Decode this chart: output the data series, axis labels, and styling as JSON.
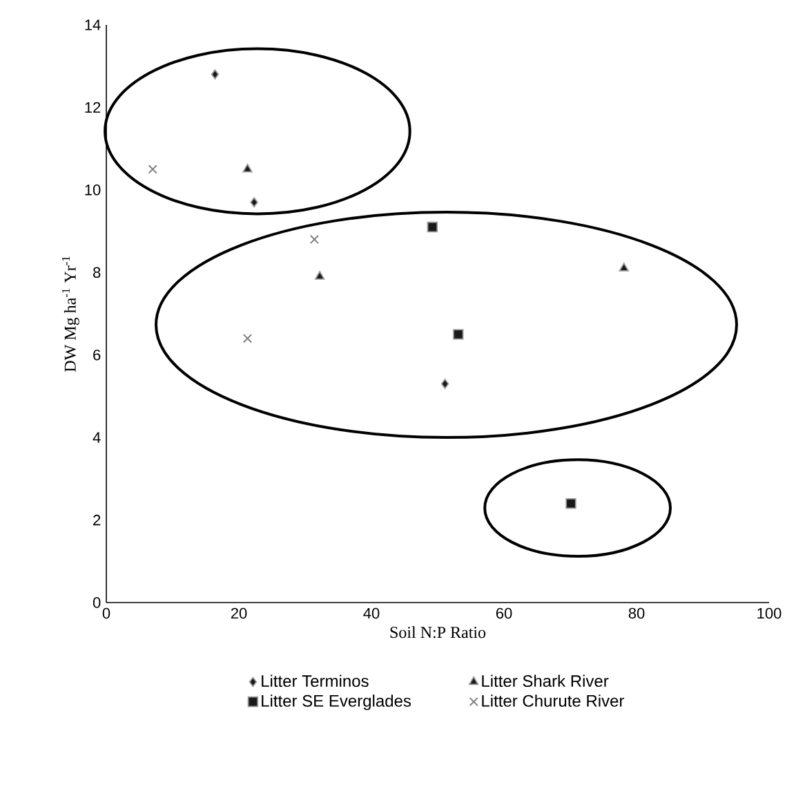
{
  "chart_data": {
    "type": "scatter",
    "xlabel": "Soil N:P Ratio",
    "ylabel": "DW Mg ha$^{-1}$ Yr$^{-1}$",
    "xlim": [
      0,
      100
    ],
    "xticks": [
      0,
      20,
      40,
      60,
      80,
      100
    ],
    "ylim": [
      0,
      14
    ],
    "yticks": [
      0,
      2,
      4,
      6,
      8,
      10,
      12,
      14
    ],
    "legend": "bottom",
    "series": [
      {
        "name": "Litter Terminos",
        "color": "#1a1a1a",
        "marker": "diamond",
        "x": [
          16.4,
          22.3,
          51.1
        ],
        "values": [
          12.8,
          9.7,
          5.3
        ]
      },
      {
        "name": "Litter Shark River",
        "color": "#1a1a1a",
        "marker": "triangle",
        "x": [
          21.3,
          32.2,
          78.1
        ],
        "values": [
          10.5,
          7.9,
          8.1
        ]
      },
      {
        "name": "Litter SE Everglades",
        "color": "#1a1a1a",
        "marker": "square",
        "x": [
          49.2,
          53.1,
          70.1
        ],
        "values": [
          9.1,
          6.5,
          2.4
        ]
      },
      {
        "name": "Litter Churute River",
        "color": "#7f7f7f",
        "marker": "cross",
        "x": [
          7.0,
          31.4,
          21.3
        ],
        "values": [
          10.5,
          8.8,
          6.4
        ]
      }
    ]
  }
}
